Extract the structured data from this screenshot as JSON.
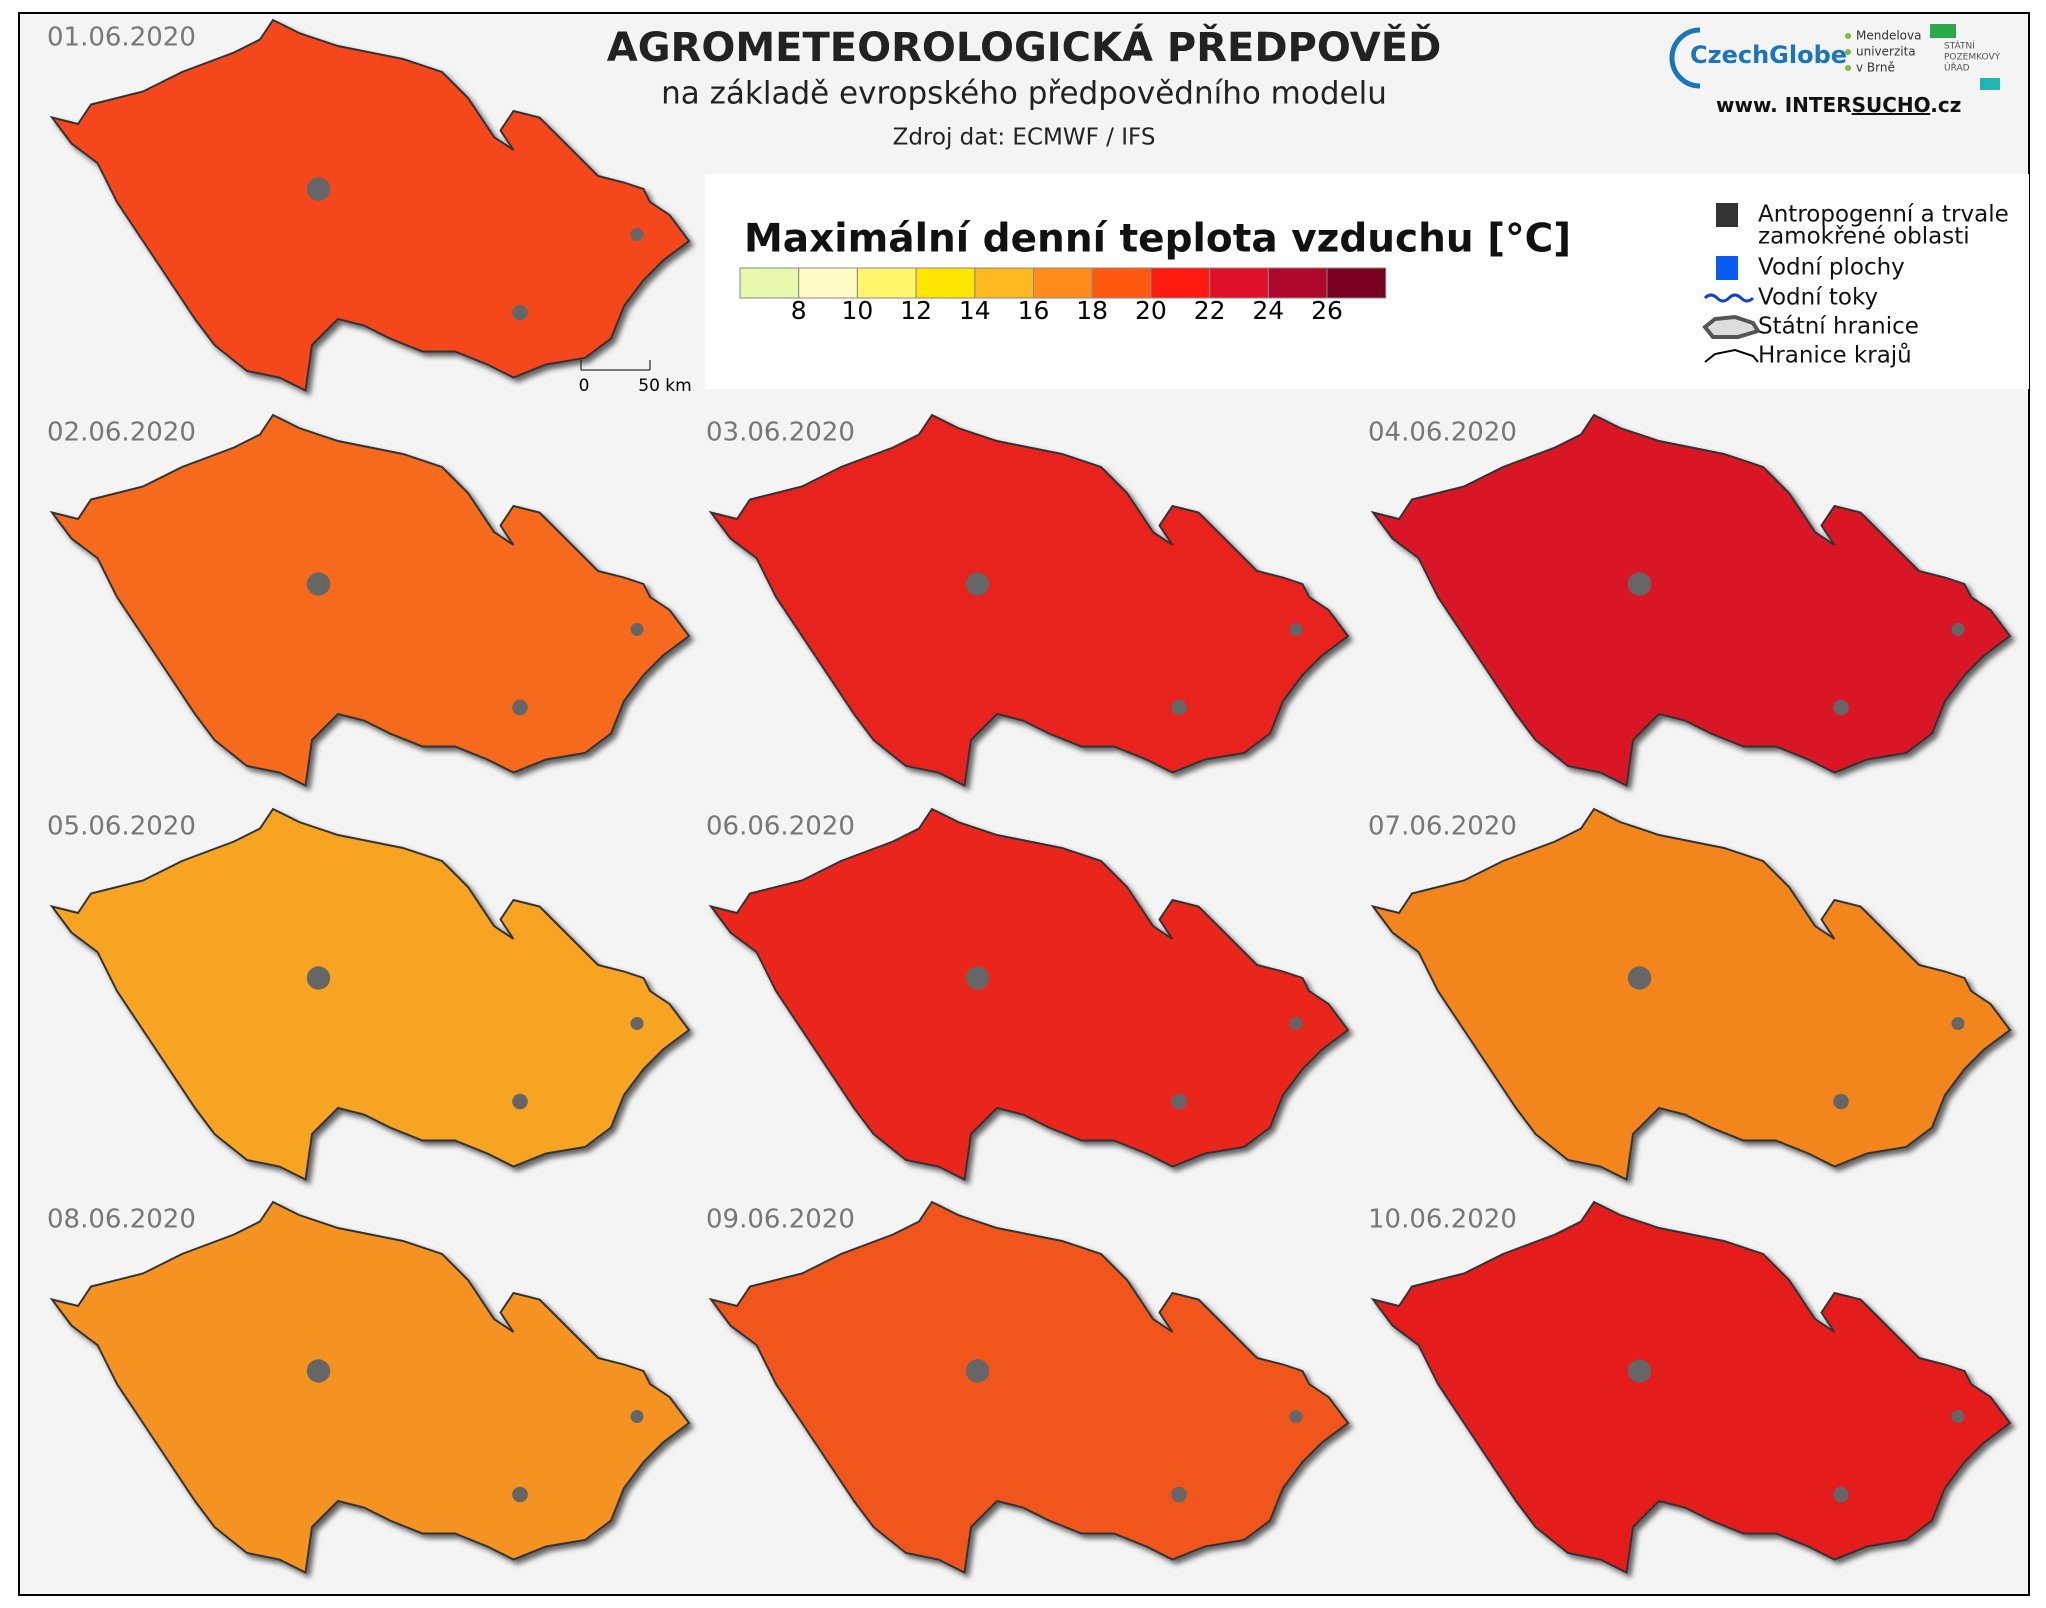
{
  "header": {
    "title": "AGROMETEOROLOGICKÁ  PŘEDPOVĚĎ",
    "subtitle": "na základě evropského předpovědního modelu",
    "source": "Zdroj dat: ECMWF / IFS"
  },
  "logos": {
    "czechglobe": "CzechGlobe",
    "mendel": [
      "Mendelova",
      "univerzita",
      "v Brně"
    ],
    "spu": [
      "STÁTNÍ",
      "POZEMKOVÝ",
      "ÚŘAD"
    ],
    "web": [
      "www. INTER",
      "SUCHO",
      ".cz"
    ]
  },
  "legend": {
    "title": "Maximální denní teplota vzduchu [°C]",
    "colors": [
      "#e8f9b0",
      "#fffbc4",
      "#fff56a",
      "#ffe600",
      "#ffb81f",
      "#ff8c1a",
      "#ff5a10",
      "#ff1a10",
      "#e0102a",
      "#b0082a",
      "#7a0020"
    ],
    "ticks": [
      8,
      10,
      12,
      14,
      16,
      18,
      20,
      22,
      24,
      26
    ],
    "items": [
      [
        "Antropogenní a trvale",
        "zamokřené oblasti"
      ],
      [
        "Vodní plochy"
      ],
      [
        "Vodní toky"
      ],
      [
        "Státní hranice"
      ],
      [
        "Hranice krajů"
      ]
    ]
  },
  "scale_bar": [
    "0",
    "50 km"
  ],
  "maps": [
    {
      "date": "01.06.2020",
      "color": "#f4461a"
    },
    {
      "date": "02.06.2020",
      "color": "#f56a1a"
    },
    {
      "date": "03.06.2020",
      "color": "#e8221f"
    },
    {
      "date": "04.06.2020",
      "color": "#d91626"
    },
    {
      "date": "05.06.2020",
      "color": "#f7a423"
    },
    {
      "date": "06.06.2020",
      "color": "#ea261c"
    },
    {
      "date": "07.06.2020",
      "color": "#f2861f"
    },
    {
      "date": "08.06.2020",
      "color": "#f49322"
    },
    {
      "date": "09.06.2020",
      "color": "#f0561a"
    },
    {
      "date": "10.06.2020",
      "color": "#e41e1e"
    }
  ]
}
